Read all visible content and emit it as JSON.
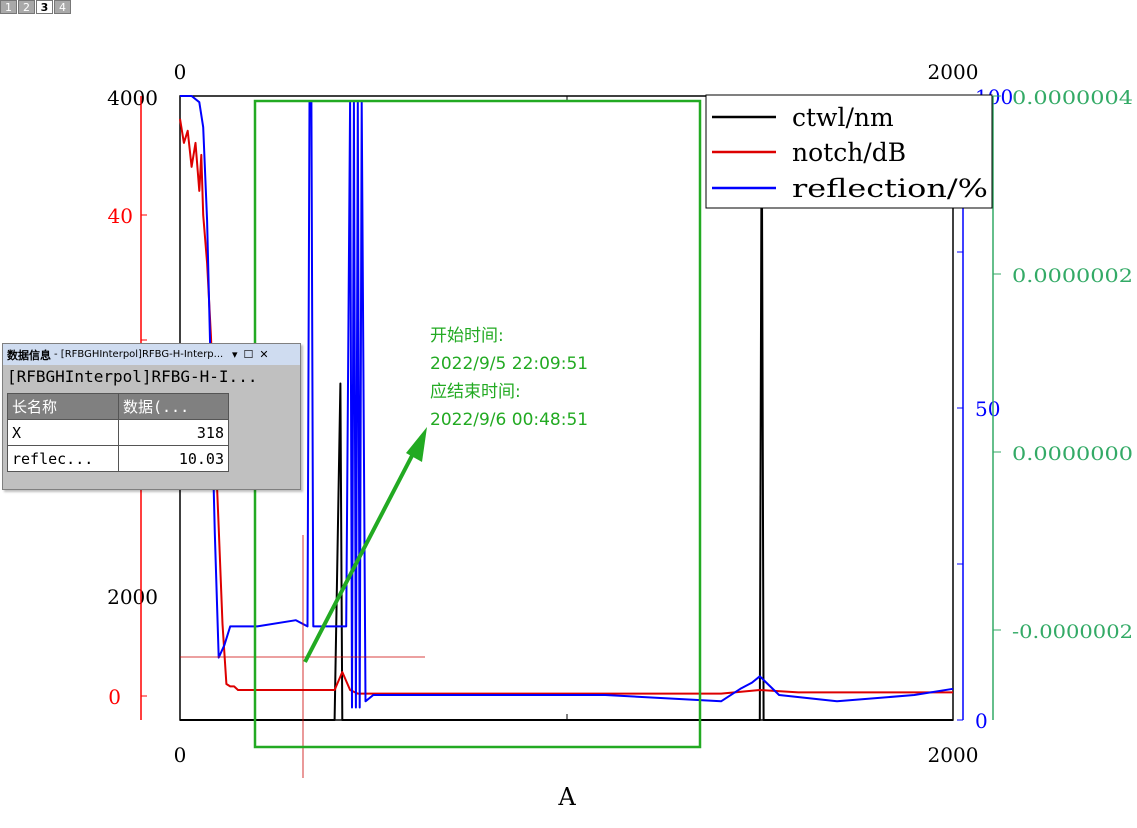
{
  "layer_tabs": [
    "1",
    "2",
    "3",
    "4"
  ],
  "active_layer_tab": "3",
  "chart_data": {
    "type": "line",
    "xlabel": "A",
    "xlim": [
      0,
      2000
    ],
    "x_top_ticks": [
      "0",
      "2000"
    ],
    "x_bottom_ticks": [
      "0",
      "2000"
    ],
    "left_black_ticks": [
      "4000",
      "2000"
    ],
    "left_red_ticks": [
      "40",
      "0"
    ],
    "right_blue_ticks": [
      "100",
      "50",
      "0"
    ],
    "right_green_ticks": [
      "0.0000004",
      "0.0000002",
      "0.0000000",
      "-0.0000002"
    ],
    "legend": {
      "position": "top-right",
      "entries": [
        "ctwl/nm",
        "notch/dB",
        "reflection/%"
      ]
    },
    "series": [
      {
        "name": "ctwl/nm",
        "color": "#000000",
        "x": [
          0,
          80,
          100,
          110,
          115,
          200,
          300,
          400,
          415,
          420,
          430,
          440,
          445,
          450,
          460,
          480,
          500,
          600,
          800,
          1000,
          1100,
          1200,
          1300,
          1400,
          1430,
          1480,
          1500,
          1505,
          1510,
          1520,
          1600,
          1700,
          1800,
          1860,
          1870,
          1880,
          1900,
          2000
        ],
        "y": [
          -150,
          -150,
          -140,
          800,
          50,
          20,
          20,
          100,
          2850,
          20,
          -180,
          20,
          20,
          10,
          5,
          5,
          5,
          5,
          5,
          5,
          5,
          5,
          5,
          5,
          0,
          -40,
          80,
          4500,
          80,
          60,
          40,
          30,
          20,
          20,
          350,
          20,
          20,
          20
        ]
      },
      {
        "name": "notch/dB",
        "color": "#dd0000",
        "x": [
          0,
          10,
          20,
          30,
          40,
          50,
          55,
          60,
          70,
          80,
          90,
          100,
          110,
          120,
          130,
          140,
          150,
          200,
          300,
          400,
          420,
          440,
          460,
          500,
          800,
          1200,
          1400,
          1500,
          1600,
          1800,
          2000
        ],
        "y": [
          48,
          46,
          47,
          44,
          46,
          42,
          45,
          40,
          36,
          30,
          22,
          14,
          6,
          1,
          0.8,
          0.8,
          0.5,
          0.5,
          0.5,
          0.5,
          2,
          0.5,
          0.2,
          0.2,
          0.2,
          0.2,
          0.2,
          0.5,
          0.3,
          0.3,
          0.3
        ]
      },
      {
        "name": "reflection/%",
        "color": "#0000ff",
        "x": [
          0,
          30,
          50,
          60,
          70,
          80,
          90,
          100,
          115,
          130,
          200,
          300,
          330,
          335,
          340,
          345,
          350,
          430,
          440,
          445,
          450,
          455,
          460,
          465,
          470,
          480,
          500,
          800,
          1100,
          1400,
          1450,
          1480,
          1500,
          1550,
          1700,
          1900,
          2000
        ],
        "y": [
          100,
          100,
          99,
          95,
          80,
          55,
          30,
          10,
          12,
          15,
          15,
          16,
          15,
          99,
          99,
          15,
          15,
          15,
          99,
          2,
          99,
          2,
          99,
          2,
          99,
          3,
          4,
          4,
          4,
          3,
          5,
          6,
          7,
          4,
          3,
          4,
          5
        ]
      }
    ]
  },
  "annotation": {
    "start_label": "开始时间:",
    "start_time": "2022/9/5 22:09:51",
    "end_label": "应结束时间:",
    "end_time": "2022/9/6 00:48:51"
  },
  "data_panel": {
    "title": "数据信息",
    "title_sub": "- [RFBGHInterpol]RFBG-H-Interp...",
    "subtitle": "[RFBGHInterpol]RFBG-H-I...",
    "headers": [
      "长名称",
      "数据(..."
    ],
    "rows": [
      {
        "name": "X",
        "value": "318"
      },
      {
        "name": "reflec...",
        "value": "10.03"
      }
    ]
  },
  "colors": {
    "black_axis": "#000000",
    "red_axis": "#ff0000",
    "blue_axis": "#0000ff",
    "green_axis": "#33aa66",
    "annotation": "#22aa22"
  }
}
